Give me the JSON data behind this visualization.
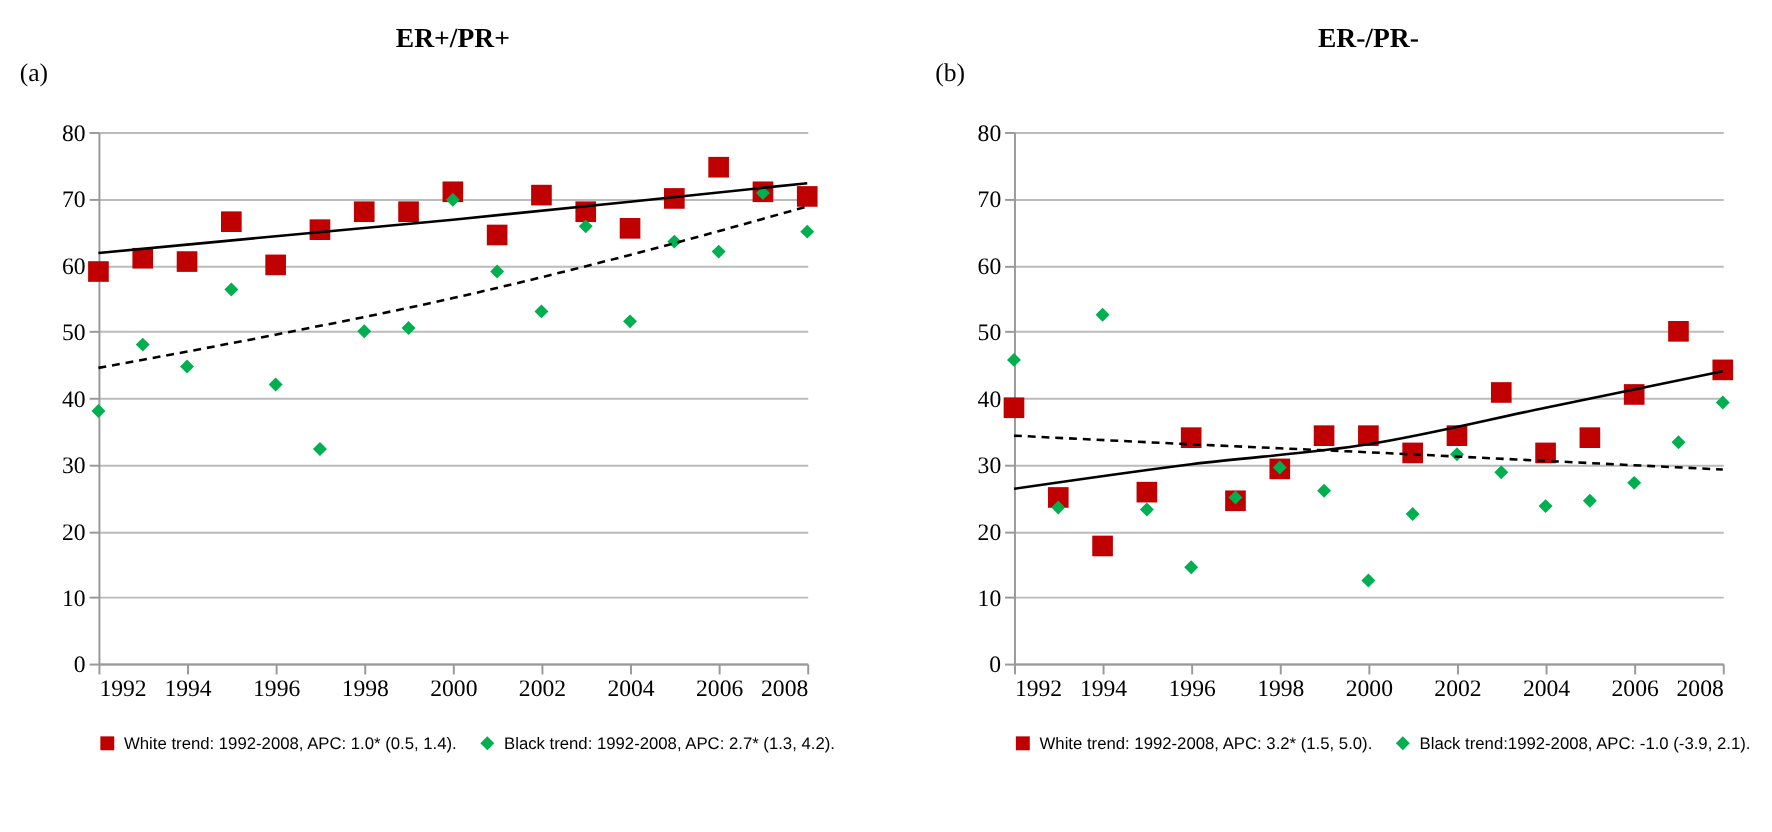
{
  "chart_data": [
    {
      "type": "scatter",
      "title": "ER+/PR+",
      "annotations": [
        "(a)"
      ],
      "xlim": [
        1992,
        2008
      ],
      "xticks": [
        1992,
        1994,
        1996,
        1998,
        2000,
        2002,
        2004,
        2006,
        2008
      ],
      "ylim": [
        0,
        80
      ],
      "yticks": [
        0,
        10,
        20,
        30,
        40,
        50,
        60,
        70,
        80
      ],
      "grid": "y",
      "legend": "bottom",
      "x": [
        1992,
        1993,
        1994,
        1995,
        1996,
        1997,
        1998,
        1999,
        2000,
        2001,
        2002,
        2003,
        2004,
        2005,
        2006,
        2007,
        2008
      ],
      "series": [
        {
          "name": "White trend: 1992-2008, APC: 1.0* (0.5, 1.4).",
          "color": "#c00000",
          "marker": "square",
          "values": [
            59,
            61,
            60.5,
            66.5,
            60,
            65.3,
            68,
            68,
            71,
            64.5,
            70.5,
            68,
            65.5,
            70,
            74.7,
            71,
            70.3
          ]
        },
        {
          "name": "Black trend: 1992-2008, APC: 2.7* (1.3, 4.2).",
          "color": "#00b050",
          "marker": "diamond",
          "values": [
            38,
            48,
            44.7,
            56.3,
            42,
            32.3,
            50,
            50.5,
            69.8,
            59,
            53,
            65.8,
            51.5,
            63.5,
            62,
            70.8,
            65
          ]
        },
        {
          "type": "line",
          "color": "#000000",
          "line_style": "solid",
          "x": [
            1992,
            1996,
            2000,
            2004,
            2008
          ],
          "values": [
            61.8,
            64.3,
            66.8,
            69.5,
            72.3
          ]
        },
        {
          "type": "line",
          "color": "#000000",
          "line_style": "dashed",
          "x": [
            1992,
            1996,
            2000,
            2004,
            2008
          ],
          "values": [
            44.5,
            49.5,
            55,
            61.5,
            68.8
          ]
        }
      ]
    },
    {
      "type": "scatter",
      "title": "ER-/PR-",
      "annotations": [
        "(b)"
      ],
      "xlim": [
        1992,
        2008
      ],
      "xticks": [
        1992,
        1994,
        1996,
        1998,
        2000,
        2002,
        2004,
        2006,
        2008
      ],
      "ylim": [
        0,
        80
      ],
      "yticks": [
        0,
        10,
        20,
        30,
        40,
        50,
        60,
        70,
        80
      ],
      "grid": "y",
      "legend": "bottom",
      "x": [
        1992,
        1993,
        1994,
        1995,
        1996,
        1997,
        1998,
        1999,
        2000,
        2001,
        2002,
        2003,
        2004,
        2005,
        2006,
        2007,
        2008
      ],
      "series": [
        {
          "name": "White trend: 1992-2008, APC: 3.2* (1.5, 5.0).",
          "color": "#c00000",
          "marker": "square",
          "values": [
            38.5,
            25,
            17.7,
            25.8,
            34,
            24.5,
            29.3,
            34.3,
            34.3,
            31.7,
            34.3,
            40.8,
            31.7,
            34,
            40.5,
            50,
            44.2
          ]
        },
        {
          "name": "Black trend:1992-2008, APC: -1.0 (-3.9, 2.1).",
          "color": "#00b050",
          "marker": "diamond",
          "values": [
            45.7,
            23.5,
            52.5,
            23.2,
            14.5,
            25,
            29.5,
            26,
            12.5,
            22.5,
            31.5,
            28.8,
            23.7,
            24.5,
            27.2,
            33.3,
            39.3
          ]
        },
        {
          "type": "line",
          "color": "#000000",
          "line_style": "solid",
          "x": [
            1992,
            1996,
            2000,
            2004,
            2008
          ],
          "values": [
            26.3,
            30,
            33,
            38.5,
            44
          ]
        },
        {
          "type": "line",
          "color": "#000000",
          "line_style": "dashed",
          "x": [
            1992,
            1996,
            2000,
            2004,
            2008
          ],
          "values": [
            34.3,
            33,
            31.8,
            30.5,
            29.2
          ]
        }
      ]
    }
  ]
}
